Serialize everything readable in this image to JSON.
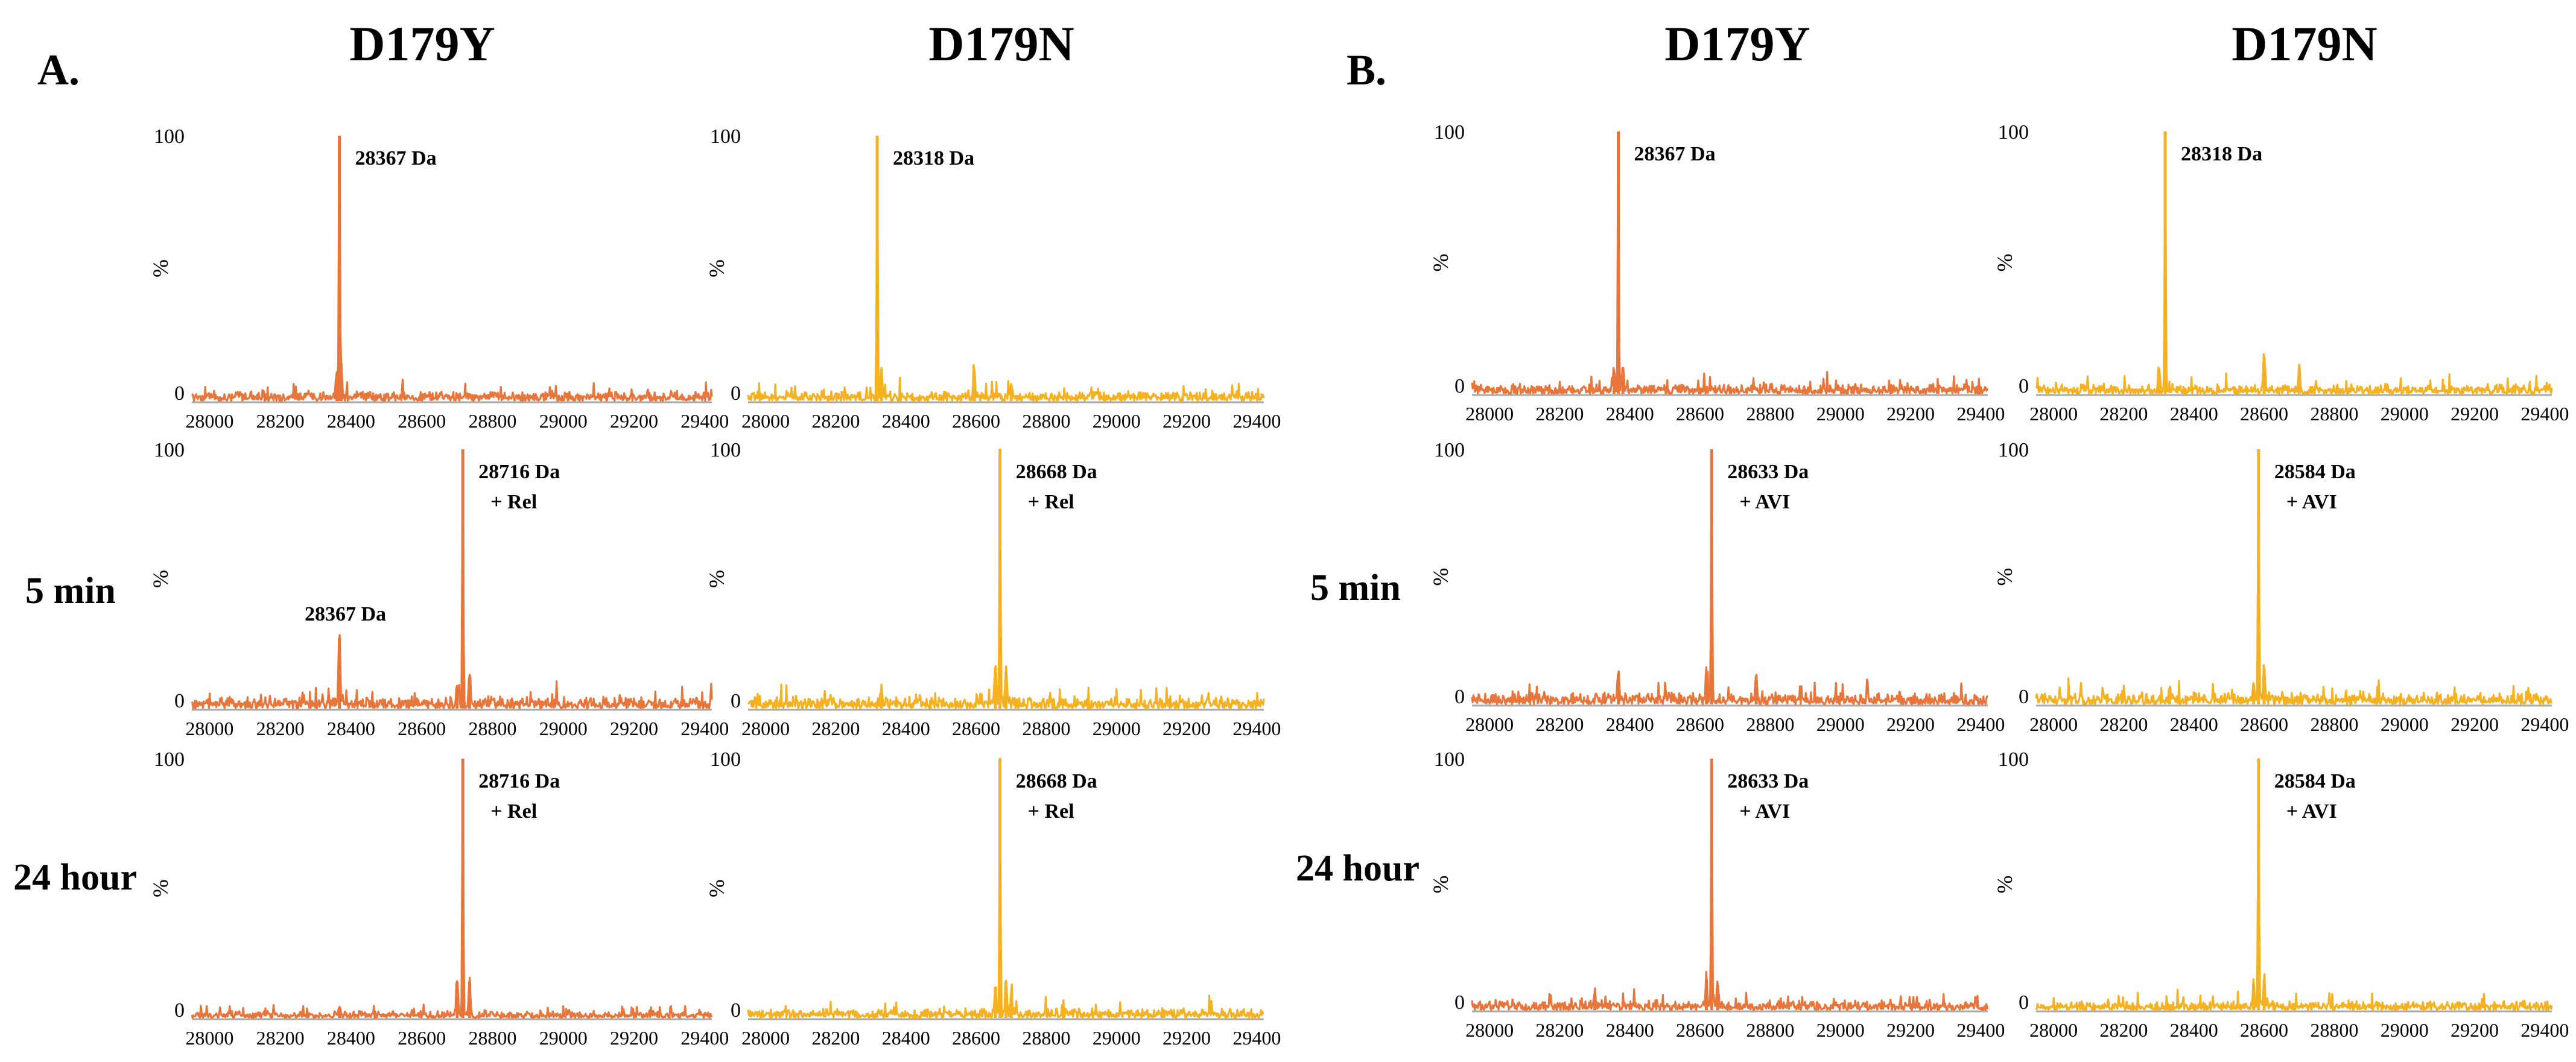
{
  "colors": {
    "d179y": "#e8763a",
    "d179n": "#f5b120",
    "axis": "#000000",
    "baseline": "#aaaaaa"
  },
  "panels": [
    {
      "letter": "A.",
      "columns": [
        "D179Y",
        "D179N"
      ],
      "time_labels": [
        "",
        "5 min",
        "24 hour"
      ]
    },
    {
      "letter": "B.",
      "columns": [
        "D179Y",
        "D179N"
      ],
      "time_labels": [
        "",
        "5 min",
        "24 hour"
      ]
    }
  ],
  "x_ticks": [
    "28000",
    "28200",
    "28400",
    "28600",
    "28800",
    "29000",
    "29200",
    "29400"
  ],
  "y_ticks": [
    "0",
    "100"
  ],
  "ylabel": "%",
  "chart_data": [
    {
      "type": "line",
      "id": "A-D179Y-0",
      "panel": "A.",
      "column": "D179Y",
      "time": "",
      "color": "d179y",
      "xlim": [
        27950,
        29420
      ],
      "ylim": [
        0,
        100
      ],
      "xlabel": "",
      "ylabel": "%",
      "peaks": [
        {
          "x": 28367,
          "y": 100
        },
        {
          "x": 28372,
          "y": 14
        },
        {
          "x": 28360,
          "y": 10
        }
      ],
      "noise": 4,
      "annotations": [
        {
          "lines": [
            "28367 Da"
          ],
          "x": 28367
        }
      ]
    },
    {
      "type": "line",
      "id": "A-D179N-0",
      "panel": "A.",
      "column": "D179N",
      "time": "",
      "color": "d179n",
      "xlim": [
        27950,
        29420
      ],
      "ylim": [
        0,
        100
      ],
      "xlabel": "",
      "ylabel": "%",
      "peaks": [
        {
          "x": 28318,
          "y": 100
        },
        {
          "x": 28595,
          "y": 10
        },
        {
          "x": 28700,
          "y": 6
        },
        {
          "x": 28330,
          "y": 12
        }
      ],
      "noise": 4,
      "annotations": [
        {
          "lines": [
            "28318 Da"
          ],
          "x": 28318
        }
      ]
    },
    {
      "type": "line",
      "id": "A-D179Y-1",
      "panel": "A.",
      "column": "D179Y",
      "time": "5 min",
      "color": "d179y",
      "xlim": [
        27950,
        29420
      ],
      "ylim": [
        0,
        100
      ],
      "xlabel": "",
      "ylabel": "%",
      "peaks": [
        {
          "x": 28367,
          "y": 27
        },
        {
          "x": 28716,
          "y": 100
        },
        {
          "x": 28735,
          "y": 12
        },
        {
          "x": 28700,
          "y": 8
        }
      ],
      "noise": 5,
      "annotations": [
        {
          "lines": [
            "28716 Da",
            "+ Rel"
          ],
          "x": 28716
        },
        {
          "lines": [
            "28367 Da"
          ],
          "x": 28367
        }
      ]
    },
    {
      "type": "line",
      "id": "A-D179N-1",
      "panel": "A.",
      "column": "D179N",
      "time": "5 min",
      "color": "d179n",
      "xlim": [
        27950,
        29420
      ],
      "ylim": [
        0,
        100
      ],
      "xlabel": "",
      "ylabel": "%",
      "peaks": [
        {
          "x": 28668,
          "y": 100
        },
        {
          "x": 28655,
          "y": 16
        },
        {
          "x": 28685,
          "y": 14
        },
        {
          "x": 28330,
          "y": 6
        }
      ],
      "noise": 5,
      "annotations": [
        {
          "lines": [
            "28668 Da",
            "+ Rel"
          ],
          "x": 28668
        }
      ]
    },
    {
      "type": "line",
      "id": "A-D179Y-2",
      "panel": "A.",
      "column": "D179Y",
      "time": "24 hour",
      "color": "d179y",
      "xlim": [
        27950,
        29420
      ],
      "ylim": [
        0,
        100
      ],
      "xlabel": "",
      "ylabel": "%",
      "peaks": [
        {
          "x": 28716,
          "y": 100
        },
        {
          "x": 28700,
          "y": 14
        },
        {
          "x": 28735,
          "y": 14
        },
        {
          "x": 28367,
          "y": 4
        }
      ],
      "noise": 3,
      "annotations": [
        {
          "lines": [
            "28716 Da",
            "+ Rel"
          ],
          "x": 28716
        }
      ]
    },
    {
      "type": "line",
      "id": "A-D179N-2",
      "panel": "A.",
      "column": "D179N",
      "time": "24 hour",
      "color": "d179n",
      "xlim": [
        27950,
        29420
      ],
      "ylim": [
        0,
        100
      ],
      "xlabel": "",
      "ylabel": "%",
      "peaks": [
        {
          "x": 28668,
          "y": 100
        },
        {
          "x": 28655,
          "y": 12
        },
        {
          "x": 28685,
          "y": 14
        },
        {
          "x": 28700,
          "y": 8
        }
      ],
      "noise": 4,
      "annotations": [
        {
          "lines": [
            "28668 Da",
            "+ Rel"
          ],
          "x": 28668
        }
      ]
    },
    {
      "type": "line",
      "id": "B-D179Y-0",
      "panel": "B.",
      "column": "D179Y",
      "time": "",
      "color": "d179y",
      "xlim": [
        27950,
        29420
      ],
      "ylim": [
        0,
        100
      ],
      "xlabel": "",
      "ylabel": "%",
      "peaks": [
        {
          "x": 28367,
          "y": 100
        },
        {
          "x": 28380,
          "y": 10
        },
        {
          "x": 28355,
          "y": 8
        }
      ],
      "noise": 4,
      "annotations": [
        {
          "lines": [
            "28367 Da"
          ],
          "x": 28367
        }
      ]
    },
    {
      "type": "line",
      "id": "B-D179N-0",
      "panel": "B.",
      "column": "D179N",
      "time": "",
      "color": "d179n",
      "xlim": [
        27950,
        29420
      ],
      "ylim": [
        0,
        100
      ],
      "xlabel": "",
      "ylabel": "%",
      "peaks": [
        {
          "x": 28318,
          "y": 100
        },
        {
          "x": 28600,
          "y": 14
        },
        {
          "x": 28700,
          "y": 10
        },
        {
          "x": 28300,
          "y": 8
        }
      ],
      "noise": 4,
      "annotations": [
        {
          "lines": [
            "28318 Da"
          ],
          "x": 28318
        }
      ]
    },
    {
      "type": "line",
      "id": "B-D179Y-1",
      "panel": "B.",
      "column": "D179Y",
      "time": "5 min",
      "color": "d179y",
      "xlim": [
        27950,
        29420
      ],
      "ylim": [
        0,
        100
      ],
      "xlabel": "",
      "ylabel": "%",
      "peaks": [
        {
          "x": 28633,
          "y": 100
        },
        {
          "x": 28367,
          "y": 12
        },
        {
          "x": 28760,
          "y": 11
        },
        {
          "x": 28618,
          "y": 10
        }
      ],
      "noise": 5,
      "annotations": [
        {
          "lines": [
            "28633 Da",
            "+ AVI"
          ],
          "x": 28633
        }
      ]
    },
    {
      "type": "line",
      "id": "B-D179N-1",
      "panel": "B.",
      "column": "D179N",
      "time": "5 min",
      "color": "d179n",
      "xlim": [
        27950,
        29420
      ],
      "ylim": [
        0,
        100
      ],
      "xlabel": "",
      "ylabel": "%",
      "peaks": [
        {
          "x": 28584,
          "y": 100
        },
        {
          "x": 28600,
          "y": 14
        },
        {
          "x": 28330,
          "y": 6
        },
        {
          "x": 28570,
          "y": 8
        }
      ],
      "noise": 5,
      "annotations": [
        {
          "lines": [
            "28584 Da",
            "+ AVI"
          ],
          "x": 28584
        }
      ]
    },
    {
      "type": "line",
      "id": "B-D179Y-2",
      "panel": "B.",
      "column": "D179Y",
      "time": "24 hour",
      "color": "d179y",
      "xlim": [
        27950,
        29420
      ],
      "ylim": [
        0,
        100
      ],
      "xlabel": "",
      "ylabel": "%",
      "peaks": [
        {
          "x": 28633,
          "y": 100
        },
        {
          "x": 28618,
          "y": 12
        },
        {
          "x": 28650,
          "y": 10
        },
        {
          "x": 28300,
          "y": 6
        }
      ],
      "noise": 4,
      "annotations": [
        {
          "lines": [
            "28633 Da",
            "+ AVI"
          ],
          "x": 28633
        }
      ]
    },
    {
      "type": "line",
      "id": "B-D179N-2",
      "panel": "B.",
      "column": "D179N",
      "time": "24 hour",
      "color": "d179n",
      "xlim": [
        27950,
        29420
      ],
      "ylim": [
        0,
        100
      ],
      "xlabel": "",
      "ylabel": "%",
      "peaks": [
        {
          "x": 28584,
          "y": 100
        },
        {
          "x": 28570,
          "y": 10
        },
        {
          "x": 28600,
          "y": 12
        }
      ],
      "noise": 4,
      "annotations": [
        {
          "lines": [
            "28584 Da",
            "+ AVI"
          ],
          "x": 28584
        }
      ]
    }
  ]
}
